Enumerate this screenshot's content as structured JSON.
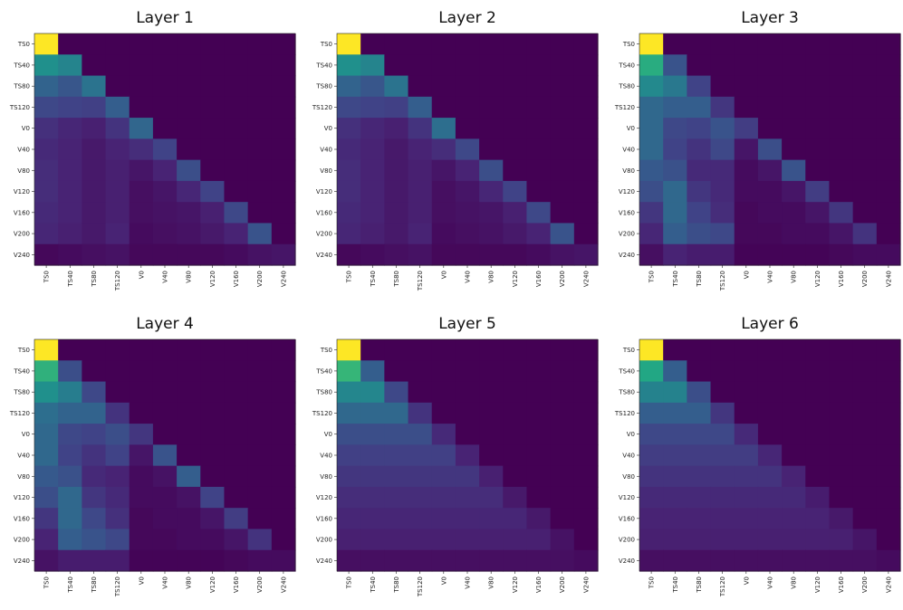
{
  "chart_data": {
    "type": "heatmap",
    "colormap": "viridis",
    "color_range": [
      0,
      1
    ],
    "labels": [
      "TS0",
      "TS40",
      "TS80",
      "TS120",
      "V0",
      "V40",
      "V80",
      "V120",
      "V160",
      "V200",
      "V240"
    ],
    "panels": [
      {
        "title": "Layer 1",
        "matrix": [
          [
            1.0,
            0,
            0,
            0,
            0,
            0,
            0,
            0,
            0,
            0,
            0
          ],
          [
            0.5,
            0.45,
            0,
            0,
            0,
            0,
            0,
            0,
            0,
            0,
            0
          ],
          [
            0.32,
            0.27,
            0.38,
            0,
            0,
            0,
            0,
            0,
            0,
            0,
            0
          ],
          [
            0.22,
            0.2,
            0.19,
            0.3,
            0,
            0,
            0,
            0,
            0,
            0,
            0
          ],
          [
            0.14,
            0.11,
            0.09,
            0.15,
            0.33,
            0,
            0,
            0,
            0,
            0,
            0
          ],
          [
            0.12,
            0.1,
            0.07,
            0.1,
            0.13,
            0.2,
            0,
            0,
            0,
            0,
            0
          ],
          [
            0.13,
            0.1,
            0.07,
            0.09,
            0.06,
            0.1,
            0.24,
            0,
            0,
            0,
            0
          ],
          [
            0.13,
            0.1,
            0.07,
            0.09,
            0.04,
            0.06,
            0.11,
            0.2,
            0,
            0,
            0
          ],
          [
            0.12,
            0.1,
            0.07,
            0.09,
            0.04,
            0.05,
            0.06,
            0.09,
            0.22,
            0,
            0
          ],
          [
            0.11,
            0.09,
            0.07,
            0.1,
            0.03,
            0.04,
            0.05,
            0.07,
            0.1,
            0.26,
            0
          ],
          [
            0.02,
            0.03,
            0.04,
            0.05,
            0.02,
            0.02,
            0.02,
            0.02,
            0.03,
            0.05,
            0.06
          ]
        ]
      },
      {
        "title": "Layer 2",
        "matrix": [
          [
            1.0,
            0,
            0,
            0,
            0,
            0,
            0,
            0,
            0,
            0,
            0
          ],
          [
            0.5,
            0.45,
            0,
            0,
            0,
            0,
            0,
            0,
            0,
            0,
            0
          ],
          [
            0.32,
            0.27,
            0.38,
            0,
            0,
            0,
            0,
            0,
            0,
            0,
            0
          ],
          [
            0.22,
            0.2,
            0.19,
            0.3,
            0,
            0,
            0,
            0,
            0,
            0,
            0
          ],
          [
            0.14,
            0.11,
            0.09,
            0.15,
            0.36,
            0,
            0,
            0,
            0,
            0,
            0
          ],
          [
            0.12,
            0.1,
            0.07,
            0.1,
            0.13,
            0.22,
            0,
            0,
            0,
            0,
            0
          ],
          [
            0.13,
            0.1,
            0.07,
            0.09,
            0.06,
            0.1,
            0.24,
            0,
            0,
            0,
            0
          ],
          [
            0.13,
            0.1,
            0.07,
            0.09,
            0.04,
            0.06,
            0.11,
            0.2,
            0,
            0,
            0
          ],
          [
            0.12,
            0.1,
            0.07,
            0.09,
            0.04,
            0.05,
            0.06,
            0.09,
            0.22,
            0,
            0
          ],
          [
            0.11,
            0.09,
            0.07,
            0.1,
            0.03,
            0.04,
            0.05,
            0.07,
            0.1,
            0.26,
            0
          ],
          [
            0.02,
            0.03,
            0.04,
            0.05,
            0.02,
            0.02,
            0.02,
            0.02,
            0.03,
            0.05,
            0.06
          ]
        ]
      },
      {
        "title": "Layer 3",
        "matrix": [
          [
            1.0,
            0,
            0,
            0,
            0,
            0,
            0,
            0,
            0,
            0,
            0
          ],
          [
            0.62,
            0.26,
            0,
            0,
            0,
            0,
            0,
            0,
            0,
            0,
            0
          ],
          [
            0.47,
            0.4,
            0.2,
            0,
            0,
            0,
            0,
            0,
            0,
            0,
            0
          ],
          [
            0.34,
            0.3,
            0.3,
            0.16,
            0,
            0,
            0,
            0,
            0,
            0,
            0
          ],
          [
            0.34,
            0.22,
            0.2,
            0.26,
            0.18,
            0,
            0,
            0,
            0,
            0,
            0
          ],
          [
            0.34,
            0.2,
            0.15,
            0.22,
            0.06,
            0.24,
            0,
            0,
            0,
            0,
            0
          ],
          [
            0.28,
            0.25,
            0.12,
            0.12,
            0.03,
            0.06,
            0.26,
            0,
            0,
            0,
            0
          ],
          [
            0.24,
            0.34,
            0.16,
            0.12,
            0.03,
            0.03,
            0.06,
            0.18,
            0,
            0,
            0
          ],
          [
            0.16,
            0.34,
            0.2,
            0.13,
            0.02,
            0.03,
            0.03,
            0.06,
            0.16,
            0,
            0
          ],
          [
            0.11,
            0.3,
            0.24,
            0.22,
            0.02,
            0.02,
            0.03,
            0.03,
            0.06,
            0.15,
            0
          ],
          [
            0.04,
            0.1,
            0.08,
            0.08,
            0.01,
            0.01,
            0.01,
            0.01,
            0.02,
            0.03,
            0.03
          ]
        ]
      },
      {
        "title": "Layer 4",
        "matrix": [
          [
            1.0,
            0,
            0,
            0,
            0,
            0,
            0,
            0,
            0,
            0,
            0
          ],
          [
            0.64,
            0.24,
            0,
            0,
            0,
            0,
            0,
            0,
            0,
            0,
            0
          ],
          [
            0.5,
            0.42,
            0.22,
            0,
            0,
            0,
            0,
            0,
            0,
            0,
            0
          ],
          [
            0.36,
            0.32,
            0.32,
            0.15,
            0,
            0,
            0,
            0,
            0,
            0,
            0
          ],
          [
            0.34,
            0.22,
            0.2,
            0.24,
            0.16,
            0,
            0,
            0,
            0,
            0,
            0
          ],
          [
            0.34,
            0.2,
            0.15,
            0.2,
            0.06,
            0.26,
            0,
            0,
            0,
            0,
            0
          ],
          [
            0.28,
            0.25,
            0.12,
            0.1,
            0.03,
            0.05,
            0.3,
            0,
            0,
            0,
            0
          ],
          [
            0.24,
            0.34,
            0.16,
            0.12,
            0.03,
            0.03,
            0.05,
            0.2,
            0,
            0,
            0
          ],
          [
            0.16,
            0.34,
            0.22,
            0.14,
            0.02,
            0.03,
            0.03,
            0.06,
            0.18,
            0,
            0
          ],
          [
            0.1,
            0.3,
            0.26,
            0.22,
            0.02,
            0.02,
            0.03,
            0.03,
            0.06,
            0.15,
            0
          ],
          [
            0.05,
            0.08,
            0.08,
            0.08,
            0.01,
            0.01,
            0.01,
            0.01,
            0.02,
            0.03,
            0.03
          ]
        ]
      },
      {
        "title": "Layer 5",
        "matrix": [
          [
            1.0,
            0,
            0,
            0,
            0,
            0,
            0,
            0,
            0,
            0,
            0
          ],
          [
            0.66,
            0.3,
            0,
            0,
            0,
            0,
            0,
            0,
            0,
            0,
            0
          ],
          [
            0.46,
            0.46,
            0.22,
            0,
            0,
            0,
            0,
            0,
            0,
            0,
            0
          ],
          [
            0.34,
            0.34,
            0.34,
            0.15,
            0,
            0,
            0,
            0,
            0,
            0,
            0
          ],
          [
            0.24,
            0.24,
            0.24,
            0.24,
            0.12,
            0,
            0,
            0,
            0,
            0,
            0
          ],
          [
            0.19,
            0.19,
            0.19,
            0.19,
            0.19,
            0.1,
            0,
            0,
            0,
            0,
            0
          ],
          [
            0.16,
            0.16,
            0.16,
            0.16,
            0.16,
            0.16,
            0.09,
            0,
            0,
            0,
            0
          ],
          [
            0.13,
            0.13,
            0.13,
            0.13,
            0.13,
            0.13,
            0.13,
            0.07,
            0,
            0,
            0
          ],
          [
            0.11,
            0.11,
            0.11,
            0.11,
            0.11,
            0.11,
            0.11,
            0.11,
            0.07,
            0,
            0
          ],
          [
            0.09,
            0.09,
            0.09,
            0.09,
            0.09,
            0.09,
            0.09,
            0.09,
            0.09,
            0.05,
            0
          ],
          [
            0.04,
            0.04,
            0.04,
            0.04,
            0.04,
            0.04,
            0.04,
            0.04,
            0.04,
            0.04,
            0.03
          ]
        ]
      },
      {
        "title": "Layer 6",
        "matrix": [
          [
            1.0,
            0,
            0,
            0,
            0,
            0,
            0,
            0,
            0,
            0,
            0
          ],
          [
            0.6,
            0.3,
            0,
            0,
            0,
            0,
            0,
            0,
            0,
            0,
            0
          ],
          [
            0.44,
            0.44,
            0.24,
            0,
            0,
            0,
            0,
            0,
            0,
            0,
            0
          ],
          [
            0.3,
            0.3,
            0.3,
            0.16,
            0,
            0,
            0,
            0,
            0,
            0,
            0
          ],
          [
            0.22,
            0.22,
            0.22,
            0.22,
            0.12,
            0,
            0,
            0,
            0,
            0,
            0
          ],
          [
            0.18,
            0.18,
            0.18,
            0.18,
            0.18,
            0.11,
            0,
            0,
            0,
            0,
            0
          ],
          [
            0.15,
            0.15,
            0.15,
            0.15,
            0.15,
            0.15,
            0.1,
            0,
            0,
            0,
            0
          ],
          [
            0.12,
            0.12,
            0.12,
            0.12,
            0.12,
            0.12,
            0.12,
            0.08,
            0,
            0,
            0
          ],
          [
            0.1,
            0.1,
            0.1,
            0.1,
            0.1,
            0.1,
            0.1,
            0.1,
            0.07,
            0,
            0
          ],
          [
            0.09,
            0.09,
            0.09,
            0.09,
            0.09,
            0.09,
            0.09,
            0.09,
            0.09,
            0.06,
            0
          ],
          [
            0.04,
            0.04,
            0.04,
            0.04,
            0.04,
            0.04,
            0.04,
            0.04,
            0.04,
            0.04,
            0.03
          ]
        ]
      }
    ]
  }
}
